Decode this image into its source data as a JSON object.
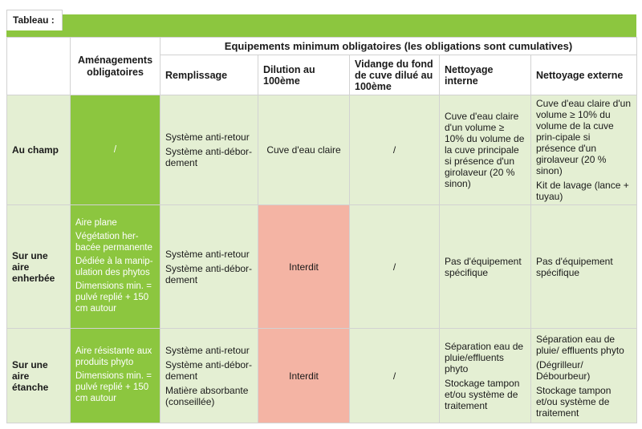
{
  "tab_label": "Tableau :",
  "header": {
    "equipements": "Equipements minimum obligatoires (les obligations sont cumulatives)",
    "amenagements": "Aménagements obligatoires",
    "columns": [
      "Remplissage",
      "Dilution au 100ème",
      "Vidange du fond de cuve dilué au 100ème",
      "Nettoyage interne",
      "Nettoyage externe"
    ]
  },
  "rows": [
    {
      "label": "Au champ",
      "amenagements": [
        "/"
      ],
      "remplissage": [
        "Système anti-retour",
        "Système anti-débor-dement"
      ],
      "dilution": "Cuve d'eau claire",
      "vidange": "/",
      "interne": [
        "Cuve d'eau claire d'un volume ≥ 10% du volume de la cuve principale si présence d'un girolaveur (20 % sinon)"
      ],
      "externe": [
        "Cuve d'eau claire d'un volume ≥ 10% du volume de la cuve prin-cipale si présence d'un girolaveur (20 % sinon)",
        "Kit de lavage (lance + tuyau)"
      ]
    },
    {
      "label": "Sur une aire enherbée",
      "amenagements": [
        "Aire plane",
        "Végétation her-bacée permanente",
        "Dédiée à la manip-ulation des phytos",
        "Dimensions min. = pulvé replié + 150 cm autour"
      ],
      "remplissage": [
        "Système anti-retour",
        "Système anti-débor-dement"
      ],
      "dilution": "Interdit",
      "vidange": "/",
      "interne": [
        "Pas d'équipement spécifique"
      ],
      "externe": [
        "Pas d'équipement spécifique"
      ]
    },
    {
      "label": "Sur une aire étanche",
      "amenagements": [
        "Aire résistante aux produits phyto",
        "Dimensions min. = pulvé replié + 150 cm autour"
      ],
      "remplissage": [
        "Système anti-retour",
        "Système anti-débor-dement",
        "Matière absorbante (conseillée)"
      ],
      "dilution": "Interdit",
      "vidange": "/",
      "interne": [
        "Séparation eau de pluie/effluents phyto",
        "Stockage tampon et/ou système de traitement"
      ],
      "externe": [
        "Séparation eau de pluie/ effluents phyto",
        "(Dégrilleur/ Débourbeur)",
        "Stockage tampon et/ou système de traitement"
      ]
    }
  ],
  "colors": {
    "green": "#8cc63f",
    "light_green": "#e4efd3",
    "red": "#f4b4a4"
  }
}
